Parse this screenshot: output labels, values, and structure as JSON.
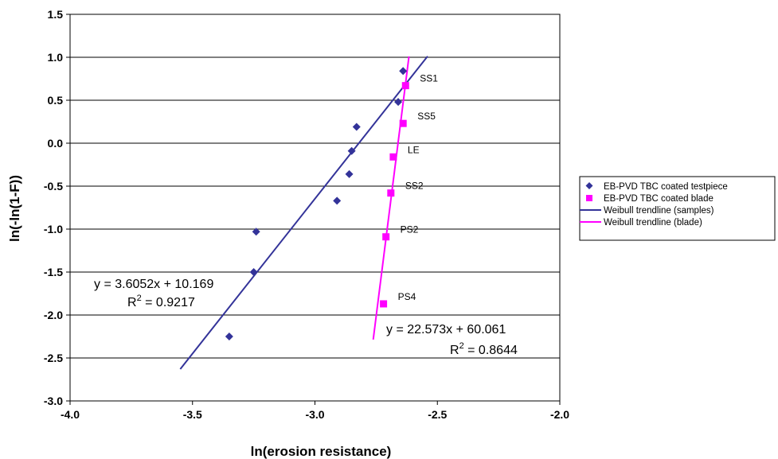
{
  "chart_data": {
    "type": "scatter",
    "xlabel": "ln(erosion resistance)",
    "ylabel": "ln(-ln(1-F))",
    "xlim": [
      -4.0,
      -2.0
    ],
    "ylim": [
      -3.0,
      1.5
    ],
    "x_ticks": [
      "-4.0",
      "-3.5",
      "-3.0",
      "-2.5",
      "-2.0"
    ],
    "y_ticks": [
      "1.5",
      "1.0",
      "0.5",
      "0.0",
      "-0.5",
      "-1.0",
      "-1.5",
      "-2.0",
      "-2.5",
      "-3.0"
    ],
    "x_tick_values": [
      -4.0,
      -3.5,
      -3.0,
      -2.5,
      -2.0
    ],
    "y_tick_values": [
      1.5,
      1.0,
      0.5,
      0.0,
      -0.5,
      -1.0,
      -1.5,
      -2.0,
      -2.5,
      -3.0
    ],
    "grid": "horizontal",
    "legend_position": "right",
    "series": [
      {
        "name": "EB-PVD TBC coated testpiece",
        "marker": "diamond",
        "color": "#333399",
        "points": [
          {
            "x": -3.35,
            "y": -2.25
          },
          {
            "x": -3.25,
            "y": -1.5
          },
          {
            "x": -3.24,
            "y": -1.03
          },
          {
            "x": -2.91,
            "y": -0.67
          },
          {
            "x": -2.86,
            "y": -0.36
          },
          {
            "x": -2.85,
            "y": -0.09
          },
          {
            "x": -2.83,
            "y": 0.19
          },
          {
            "x": -2.66,
            "y": 0.48
          },
          {
            "x": -2.64,
            "y": 0.84
          }
        ]
      },
      {
        "name": "EB-PVD TBC coated blade",
        "marker": "square",
        "color": "#FF00FF",
        "points": [
          {
            "x": -2.72,
            "y": -1.87,
            "label": "PS4"
          },
          {
            "x": -2.71,
            "y": -1.09,
            "label": "PS2"
          },
          {
            "x": -2.69,
            "y": -0.58,
            "label": "SS2"
          },
          {
            "x": -2.68,
            "y": -0.16,
            "label": "LE"
          },
          {
            "x": -2.64,
            "y": 0.23,
            "label": "SS5"
          },
          {
            "x": -2.63,
            "y": 0.67,
            "label": "SS1"
          }
        ]
      }
    ],
    "trendlines": [
      {
        "name": "Weibull trendline (samples)",
        "color": "#333399",
        "slope": 3.6052,
        "intercept": 10.169,
        "x_range": [
          -3.55,
          -2.54
        ],
        "equation": "y = 3.6052x + 10.169",
        "r2_prefix": "R",
        "r2_value": " = 0.9217"
      },
      {
        "name": "Weibull trendline (blade)",
        "color": "#FF00FF",
        "slope": 22.573,
        "intercept": 60.061,
        "x_range": [
          -2.762,
          -2.616
        ],
        "equation": "y = 22.573x + 60.061",
        "r2_prefix": "R",
        "r2_value": " = 0.8644"
      }
    ]
  }
}
